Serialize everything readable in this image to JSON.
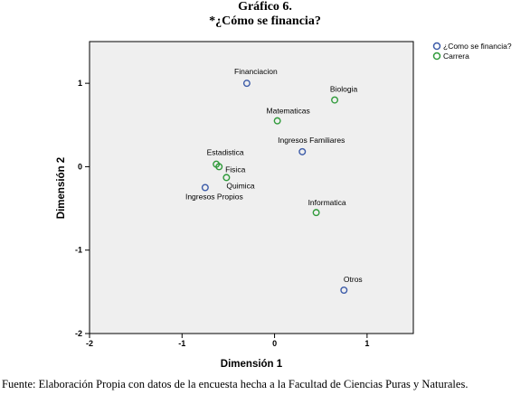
{
  "header": {
    "line1": "Gráfico 6.",
    "line2": "*¿Cómo se financia?"
  },
  "footer": {
    "source": "Fuente: Elaboración Propia con datos de la encuesta hecha a la Facultad de Ciencias Puras y Naturales."
  },
  "chart_data": {
    "type": "scatter",
    "title": "",
    "xlabel": "Dimensión 1",
    "ylabel": "Dimensión 2",
    "xlim": [
      -2,
      1.5
    ],
    "ylim": [
      -2,
      1.5
    ],
    "xticks": [
      -2,
      -1,
      0,
      1
    ],
    "yticks": [
      1,
      0,
      -1,
      -2
    ],
    "grid": false,
    "legend_position": "top-right",
    "series": [
      {
        "name": "¿Como se financia?",
        "color": "#3c5ba8",
        "points": [
          {
            "label": "Financiacion",
            "x": -0.3,
            "y": 1.0
          },
          {
            "label": "Ingresos Familiares",
            "x": 0.3,
            "y": 0.18
          },
          {
            "label": "Ingresos Propios",
            "x": -0.75,
            "y": -0.25
          },
          {
            "label": "Otros",
            "x": 0.75,
            "y": -1.48
          }
        ]
      },
      {
        "name": "Carrera",
        "color": "#2f9a3a",
        "points": [
          {
            "label": "Biologia",
            "x": 0.65,
            "y": 0.8
          },
          {
            "label": "Matematicas",
            "x": 0.03,
            "y": 0.55
          },
          {
            "label": "Estadistica",
            "x": -0.63,
            "y": 0.03
          },
          {
            "label": "Fisica",
            "x": -0.6,
            "y": 0.0
          },
          {
            "label": "Quimica",
            "x": -0.52,
            "y": -0.13
          },
          {
            "label": "Informatica",
            "x": 0.45,
            "y": -0.55
          }
        ]
      }
    ]
  }
}
